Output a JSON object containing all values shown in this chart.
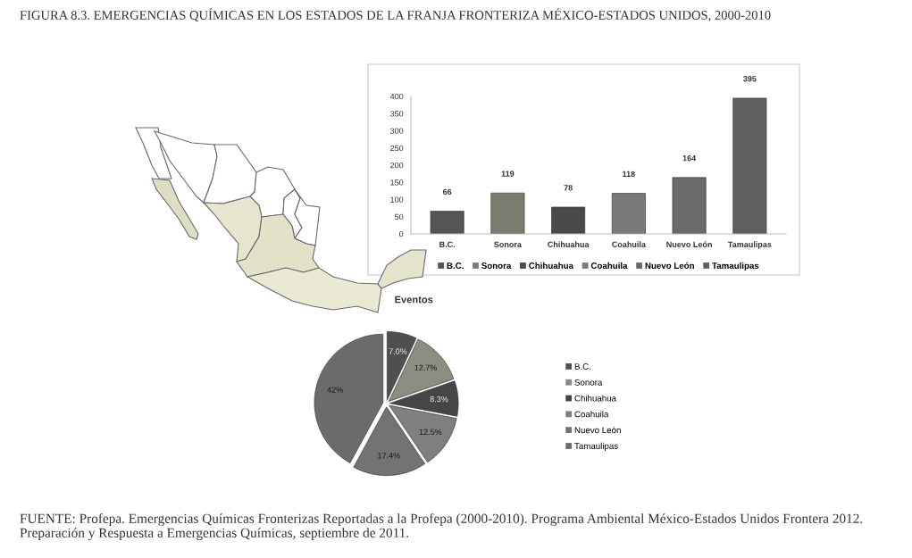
{
  "chart_data": [
    {
      "type": "bar",
      "title": "FIGURA 8.3. EMERGENCIAS QUÍMICAS EN LOS ESTADOS DE LA FRANJA FRONTERIZA MÉXICO-ESTADOS UNIDOS, 2000-2010",
      "categories": [
        "B.C.",
        "Sonora",
        "Chihuahua",
        "Coahuila",
        "Nuevo León",
        "Tamaulipas"
      ],
      "series": [
        {
          "name": "B.C.",
          "color": "#555555",
          "values": [
            66,
            null,
            null,
            null,
            null,
            null
          ]
        },
        {
          "name": "Sonora",
          "color": "#7c7c70",
          "values": [
            null,
            119,
            null,
            null,
            null,
            null
          ]
        },
        {
          "name": "Chihuahua",
          "color": "#4a4a4a",
          "values": [
            null,
            null,
            78,
            null,
            null,
            null
          ]
        },
        {
          "name": "Coahuila",
          "color": "#7a7a7a",
          "values": [
            null,
            null,
            null,
            118,
            null,
            null
          ]
        },
        {
          "name": "Nuevo León",
          "color": "#6a6a6a",
          "values": [
            null,
            null,
            null,
            null,
            164,
            null
          ]
        },
        {
          "name": "Tamaulipas",
          "color": "#5f5f5f",
          "values": [
            null,
            null,
            null,
            null,
            null,
            395
          ]
        }
      ],
      "ylim": [
        0,
        400
      ],
      "yticks": [
        0,
        50,
        100,
        150,
        200,
        250,
        300,
        350,
        400
      ],
      "data_labels": true,
      "legend": "bottom",
      "annotations": [
        "FUENTE: Profepa. Emergencias Químicas Fronterizas Reportadas a la Profepa (2000-2010). Programa Ambiental México-Estados Unidos Frontera 2012. Preparación y Respuesta a Emergencias Químicas, septiembre de 2011."
      ]
    },
    {
      "type": "pie",
      "title": "Eventos",
      "categories": [
        "B.C.",
        "Sonora",
        "Chihuahua",
        "Coahuila",
        "Nuevo León",
        "Tamaulipas"
      ],
      "values": [
        7.0,
        12.7,
        8.3,
        12.5,
        17.4,
        42
      ],
      "value_labels": [
        "7.0%",
        "12.7%",
        "8.3%",
        "12.5%",
        "17.4%",
        "42%"
      ],
      "colors": [
        "#4f4f4f",
        "#8c8c80",
        "#464646",
        "#7f7f7f",
        "#737373",
        "#6b6b6b"
      ],
      "legend": "right"
    }
  ]
}
